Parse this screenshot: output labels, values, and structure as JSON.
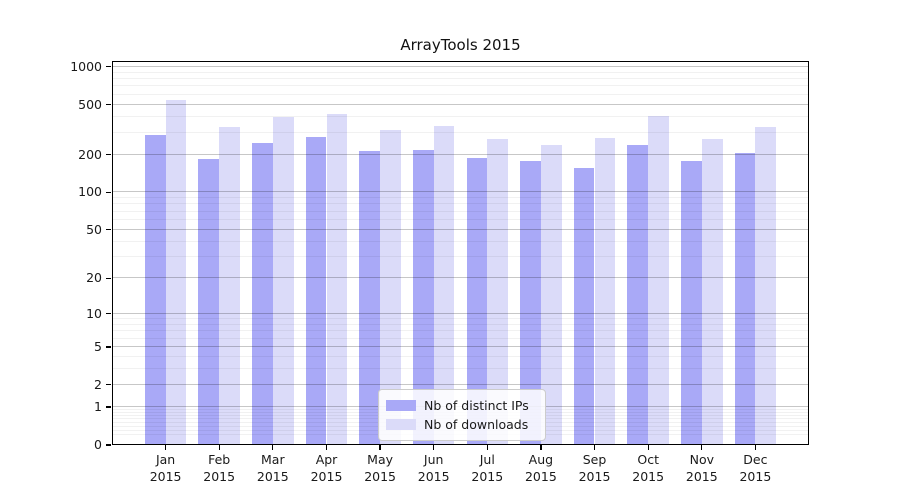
{
  "chart_data": {
    "type": "bar",
    "title": "ArrayTools 2015",
    "year_label": "2015",
    "categories": [
      "Jan",
      "Feb",
      "Mar",
      "Apr",
      "May",
      "Jun",
      "Jul",
      "Aug",
      "Sep",
      "Oct",
      "Nov",
      "Dec"
    ],
    "series": [
      {
        "name": "Nb of distinct IPs",
        "color": "#a9a9f7",
        "values": [
          285,
          184,
          249,
          275,
          215,
          218,
          187,
          178,
          158,
          240,
          177,
          205
        ]
      },
      {
        "name": "Nb of downloads",
        "color": "#dbdbf9",
        "values": [
          544,
          330,
          401,
          419,
          314,
          338,
          265,
          238,
          274,
          405,
          268,
          334
        ]
      }
    ],
    "xlabel": "",
    "ylabel": "",
    "y_axis": {
      "scale": "log1p",
      "ticks": [
        0,
        1,
        2,
        5,
        10,
        20,
        50,
        100,
        200,
        500,
        1000
      ],
      "minor_ticks": [
        0.2,
        0.3,
        0.4,
        0.5,
        0.6,
        0.7,
        0.8,
        0.9,
        3,
        4,
        6,
        7,
        8,
        9,
        30,
        40,
        60,
        70,
        80,
        90,
        300,
        400,
        600,
        700,
        800,
        900
      ],
      "ylim": [
        0,
        1110
      ]
    },
    "grid": true,
    "legend_position": "bottom-center",
    "colors": {
      "axis": "#000000",
      "grid_major": "#cccccc",
      "grid_minor": "#ececec",
      "text": "#1a1a1a"
    }
  }
}
